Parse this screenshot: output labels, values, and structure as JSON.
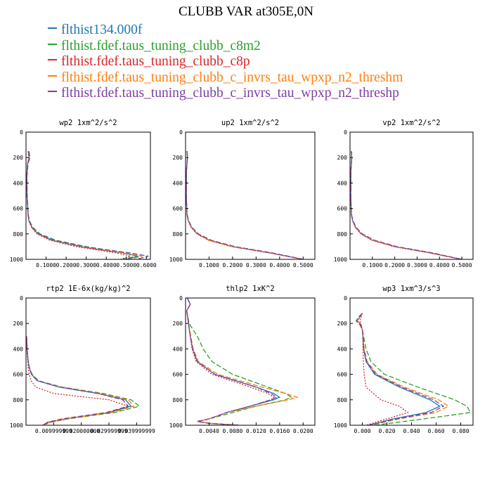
{
  "title": "CLUBB VAR at305E,0N",
  "legend": [
    {
      "label": "flthist134.000f",
      "color": "#1f77b4"
    },
    {
      "label": "flthist.fdef.taus_tuning_clubb_c8m2",
      "color": "#2ca02c"
    },
    {
      "label": "flthist.fdef.taus_tuning_clubb_c8p",
      "color": "#d62728"
    },
    {
      "label": "flthist.fdef.taus_tuning_clubb_c_invrs_tau_wpxp_n2_threshm",
      "color": "#ff7f0e"
    },
    {
      "label": "flthist.fdef.taus_tuning_clubb_c_invrs_tau_wpxp_n2_threshp",
      "color": "#7b3fa0"
    }
  ],
  "chart_data": [
    {
      "type": "line",
      "title": "wp2  1xm^2/s^2",
      "xlim": [
        0,
        0.62
      ],
      "ylim": [
        1000,
        0
      ],
      "xticks": [
        0.1,
        0.2,
        0.3,
        0.4,
        0.5,
        0.6
      ],
      "xtick_labels": [
        "0.1000",
        "0.2000",
        "0.3000",
        "0.4000",
        "0.5000",
        "0.6000"
      ],
      "yticks": [
        0,
        200,
        400,
        600,
        800,
        1000
      ],
      "ytick_labels": [
        "0",
        "200",
        "400",
        "600",
        "800",
        "1000"
      ],
      "y": [
        150,
        200,
        250,
        350,
        500,
        650,
        700,
        750,
        800,
        850,
        900,
        925,
        950,
        975,
        1000
      ],
      "series": [
        {
          "values": [
            0.012,
            0.016,
            0.008,
            0.004,
            0.005,
            0.01,
            0.015,
            0.03,
            0.06,
            0.13,
            0.27,
            0.37,
            0.48,
            0.56,
            0.5
          ]
        },
        {
          "values": [
            0.015,
            0.02,
            0.01,
            0.005,
            0.006,
            0.012,
            0.018,
            0.035,
            0.07,
            0.15,
            0.3,
            0.4,
            0.5,
            0.55,
            0.48
          ]
        },
        {
          "values": [
            0.01,
            0.014,
            0.007,
            0.004,
            0.005,
            0.01,
            0.015,
            0.028,
            0.055,
            0.12,
            0.25,
            0.35,
            0.45,
            0.52,
            0.47
          ]
        },
        {
          "values": [
            0.012,
            0.016,
            0.008,
            0.004,
            0.005,
            0.011,
            0.016,
            0.03,
            0.062,
            0.135,
            0.28,
            0.38,
            0.49,
            0.58,
            0.52
          ]
        },
        {
          "values": [
            0.012,
            0.016,
            0.008,
            0.004,
            0.005,
            0.01,
            0.015,
            0.032,
            0.065,
            0.14,
            0.29,
            0.4,
            0.52,
            0.61,
            0.55
          ]
        }
      ]
    },
    {
      "type": "line",
      "title": "up2  1xm^2/s^2",
      "xlim": [
        0,
        0.55
      ],
      "ylim": [
        1000,
        0
      ],
      "xticks": [
        0.1,
        0.2,
        0.3,
        0.4,
        0.5
      ],
      "xtick_labels": [
        "0.1000",
        "0.2000",
        "0.3000",
        "0.4000",
        "0.5000"
      ],
      "yticks": [
        0,
        200,
        400,
        600,
        800,
        1000
      ],
      "ytick_labels": [
        "0",
        "200",
        "400",
        "600",
        "800",
        "1000"
      ],
      "y": [
        150,
        200,
        300,
        500,
        650,
        700,
        750,
        800,
        850,
        900,
        950,
        1000
      ],
      "series": [
        {
          "values": [
            0.006,
            0.008,
            0.004,
            0.003,
            0.006,
            0.012,
            0.025,
            0.05,
            0.1,
            0.2,
            0.36,
            0.5
          ]
        },
        {
          "values": [
            0.006,
            0.008,
            0.004,
            0.003,
            0.006,
            0.012,
            0.026,
            0.052,
            0.105,
            0.205,
            0.365,
            0.5
          ]
        },
        {
          "values": [
            0.006,
            0.008,
            0.004,
            0.003,
            0.006,
            0.012,
            0.024,
            0.048,
            0.098,
            0.195,
            0.355,
            0.5
          ]
        },
        {
          "values": [
            0.006,
            0.008,
            0.004,
            0.003,
            0.006,
            0.012,
            0.025,
            0.05,
            0.1,
            0.2,
            0.36,
            0.5
          ]
        },
        {
          "values": [
            0.006,
            0.008,
            0.004,
            0.003,
            0.007,
            0.014,
            0.028,
            0.055,
            0.11,
            0.21,
            0.37,
            0.5
          ]
        }
      ]
    },
    {
      "type": "line",
      "title": "vp2  1xm^2/s^2",
      "xlim": [
        0,
        0.55
      ],
      "ylim": [
        1000,
        0
      ],
      "xticks": [
        0.1,
        0.2,
        0.3,
        0.4,
        0.5
      ],
      "xtick_labels": [
        "0.1000",
        "0.2000",
        "0.3000",
        "0.4000",
        "0.5000"
      ],
      "yticks": [
        0,
        200,
        400,
        600,
        800,
        1000
      ],
      "ytick_labels": [
        "0",
        "200",
        "400",
        "600",
        "800",
        "1000"
      ],
      "y": [
        150,
        200,
        300,
        500,
        650,
        700,
        750,
        800,
        850,
        900,
        950,
        1000
      ],
      "series": [
        {
          "values": [
            0.006,
            0.008,
            0.004,
            0.003,
            0.006,
            0.012,
            0.025,
            0.05,
            0.1,
            0.2,
            0.36,
            0.5
          ]
        },
        {
          "values": [
            0.006,
            0.008,
            0.004,
            0.003,
            0.006,
            0.012,
            0.026,
            0.052,
            0.105,
            0.205,
            0.365,
            0.5
          ]
        },
        {
          "values": [
            0.006,
            0.008,
            0.004,
            0.003,
            0.006,
            0.012,
            0.024,
            0.048,
            0.098,
            0.195,
            0.355,
            0.5
          ]
        },
        {
          "values": [
            0.006,
            0.008,
            0.004,
            0.003,
            0.006,
            0.012,
            0.025,
            0.05,
            0.1,
            0.2,
            0.36,
            0.5
          ]
        },
        {
          "values": [
            0.006,
            0.008,
            0.004,
            0.003,
            0.007,
            0.014,
            0.028,
            0.055,
            0.11,
            0.21,
            0.37,
            0.5
          ]
        }
      ]
    },
    {
      "type": "line",
      "title": "rtp2  1E-6x(kg/kg)^2",
      "xlim": [
        0,
        0.045
      ],
      "ylim": [
        1000,
        0
      ],
      "xticks": [
        0.01,
        0.02,
        0.03,
        0.04
      ],
      "xtick_labels": [
        "0.009999999",
        "0.020000000",
        "0.029999999",
        "0.039999999"
      ],
      "yticks": [
        0,
        200,
        400,
        600,
        800,
        1000
      ],
      "ytick_labels": [
        "0",
        "200",
        "400",
        "600",
        "800",
        "1000"
      ],
      "y": [
        300,
        400,
        500,
        550,
        600,
        650,
        700,
        750,
        800,
        850,
        900,
        950,
        975,
        1000
      ],
      "series": [
        {
          "values": [
            0.0002,
            0.0004,
            0.0008,
            0.0012,
            0.002,
            0.004,
            0.012,
            0.026,
            0.036,
            0.038,
            0.03,
            0.014,
            0.008,
            0.006
          ]
        },
        {
          "values": [
            0.0002,
            0.0004,
            0.0008,
            0.0013,
            0.0022,
            0.0045,
            0.013,
            0.028,
            0.038,
            0.041,
            0.032,
            0.015,
            0.009,
            0.006
          ]
        },
        {
          "values": [
            0.0002,
            0.0003,
            0.0006,
            0.0008,
            0.0012,
            0.0018,
            0.0035,
            0.01,
            0.03,
            0.037,
            0.03,
            0.015,
            0.009,
            0.006
          ]
        },
        {
          "values": [
            0.0002,
            0.0004,
            0.0008,
            0.0012,
            0.002,
            0.0042,
            0.0125,
            0.027,
            0.037,
            0.039,
            0.031,
            0.014,
            0.008,
            0.006
          ]
        },
        {
          "values": [
            0.0002,
            0.0004,
            0.0008,
            0.0012,
            0.002,
            0.004,
            0.012,
            0.026,
            0.035,
            0.037,
            0.029,
            0.013,
            0.008,
            0.006
          ]
        }
      ]
    },
    {
      "type": "line",
      "title": "thlp2  1xK^2",
      "xlim": [
        0,
        0.022
      ],
      "ylim": [
        1000,
        0
      ],
      "xticks": [
        0.004,
        0.008,
        0.012,
        0.016,
        0.02
      ],
      "xtick_labels": [
        "0.0040",
        "0.0080",
        "0.0120",
        "0.0160",
        "0.0200"
      ],
      "yticks": [
        0,
        200,
        400,
        600,
        800,
        1000
      ],
      "ytick_labels": [
        "0",
        "200",
        "400",
        "600",
        "800",
        "1000"
      ],
      "y": [
        0,
        50,
        100,
        200,
        300,
        400,
        500,
        600,
        700,
        750,
        780,
        800,
        850,
        900,
        950,
        970,
        985,
        1000
      ],
      "series": [
        {
          "values": [
            0.0003,
            0.0008,
            0.0002,
            0.0005,
            0.0008,
            0.0012,
            0.002,
            0.005,
            0.012,
            0.015,
            0.016,
            0.015,
            0.011,
            0.007,
            0.004,
            0.002,
            0.004,
            0.009
          ]
        },
        {
          "values": [
            0.0003,
            0.0008,
            0.0002,
            0.0006,
            0.002,
            0.003,
            0.0045,
            0.008,
            0.014,
            0.017,
            0.018,
            0.017,
            0.012,
            0.008,
            0.004,
            0.002,
            0.004,
            0.009
          ]
        },
        {
          "values": [
            0.0003,
            0.0008,
            0.0002,
            0.0005,
            0.0008,
            0.0011,
            0.0018,
            0.0045,
            0.011,
            0.014,
            0.015,
            0.0145,
            0.011,
            0.007,
            0.004,
            0.002,
            0.004,
            0.009
          ]
        },
        {
          "values": [
            0.0003,
            0.0008,
            0.0002,
            0.0005,
            0.0009,
            0.0013,
            0.0022,
            0.0055,
            0.013,
            0.017,
            0.019,
            0.0175,
            0.012,
            0.007,
            0.004,
            0.002,
            0.004,
            0.009
          ]
        },
        {
          "values": [
            0.0003,
            0.0008,
            0.0002,
            0.0005,
            0.0008,
            0.0012,
            0.002,
            0.005,
            0.012,
            0.0145,
            0.0155,
            0.0145,
            0.011,
            0.007,
            0.004,
            0.002,
            0.004,
            0.009
          ]
        }
      ]
    },
    {
      "type": "line",
      "title": "wp3  1xm^3/s^3",
      "xlim": [
        -0.01,
        0.09
      ],
      "ylim": [
        1000,
        0
      ],
      "xticks": [
        0,
        0.02,
        0.04,
        0.06,
        0.08
      ],
      "xtick_labels": [
        "0.000",
        "0.020",
        "0.040",
        "0.060",
        "0.080"
      ],
      "yticks": [
        0,
        200,
        400,
        600,
        800,
        1000
      ],
      "ytick_labels": [
        "0",
        "200",
        "400",
        "600",
        "800",
        "1000"
      ],
      "y": [
        120,
        150,
        180,
        210,
        250,
        300,
        400,
        500,
        600,
        700,
        800,
        850,
        900,
        950,
        1000
      ],
      "series": [
        {
          "values": [
            0,
            -0.002,
            -0.004,
            -0.001,
            0,
            0.0005,
            0.001,
            0.003,
            0.01,
            0.03,
            0.055,
            0.063,
            0.052,
            0.025,
            0.005
          ]
        },
        {
          "values": [
            0,
            -0.003,
            -0.005,
            -0.002,
            0,
            0.001,
            0.003,
            0.007,
            0.018,
            0.045,
            0.075,
            0.085,
            0.088,
            0.05,
            0.01
          ]
        },
        {
          "values": [
            0,
            -0.001,
            -0.002,
            -0.001,
            0,
            0.0003,
            0.0005,
            0.0008,
            0.0015,
            0.003,
            0.015,
            0.03,
            0.037,
            0.02,
            0.003
          ]
        },
        {
          "values": [
            0,
            -0.0025,
            -0.004,
            -0.0015,
            0,
            0.0007,
            0.0015,
            0.004,
            0.012,
            0.034,
            0.062,
            0.07,
            0.06,
            0.03,
            0.006
          ]
        },
        {
          "values": [
            0,
            -0.003,
            -0.005,
            -0.0015,
            0,
            0.0006,
            0.0012,
            0.0035,
            0.011,
            0.032,
            0.058,
            0.066,
            0.056,
            0.028,
            0.005
          ]
        }
      ]
    }
  ]
}
